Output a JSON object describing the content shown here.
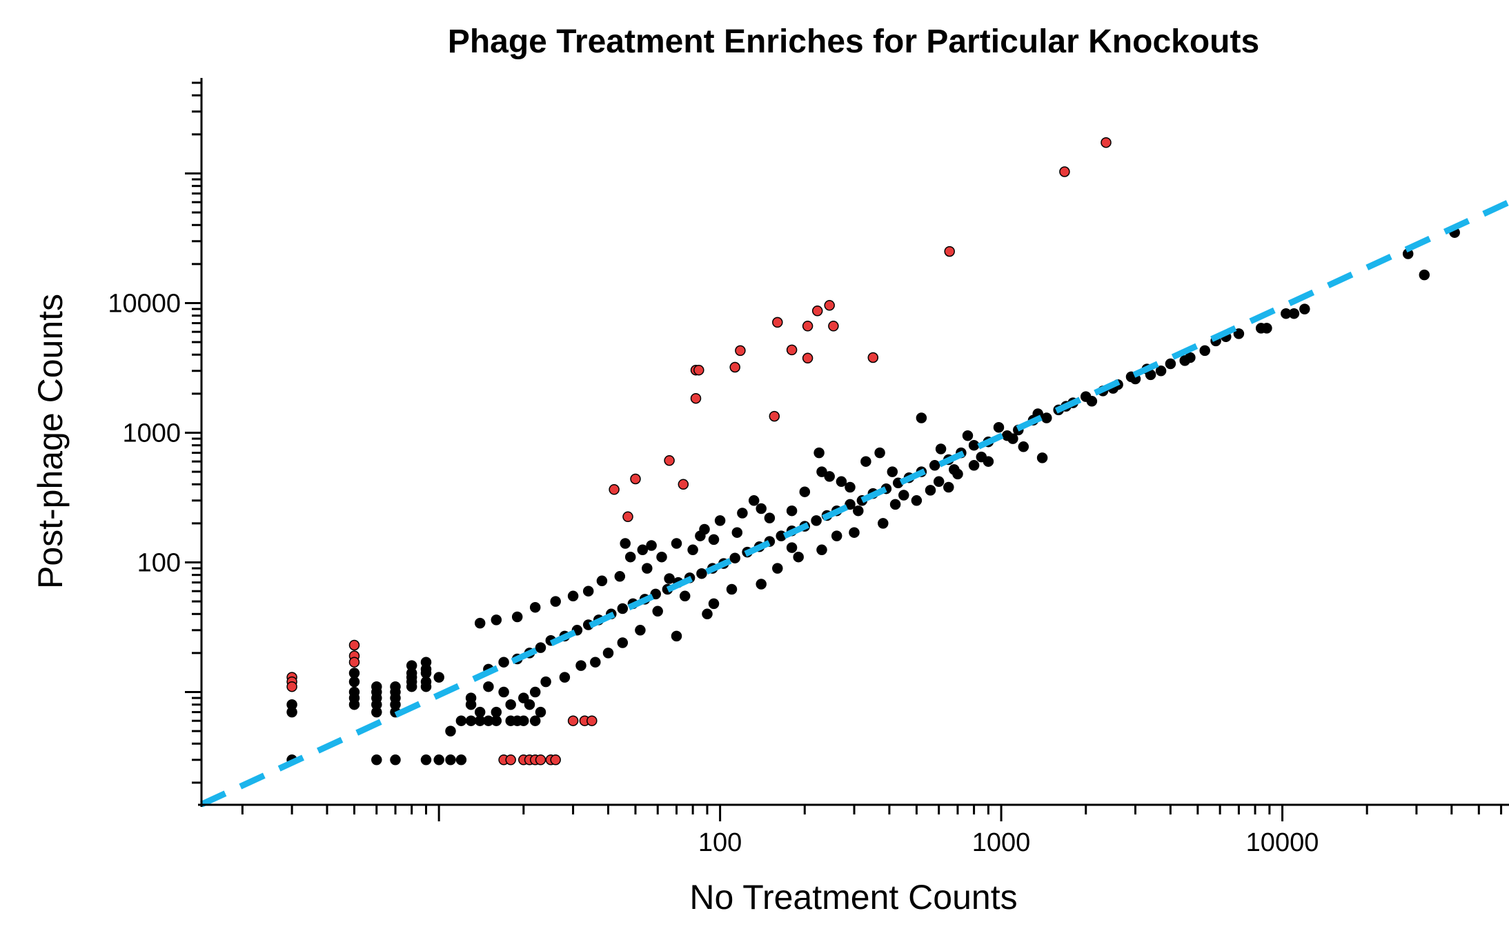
{
  "chart_data": {
    "type": "scatter",
    "title": "Phage Treatment Enriches for Particular Knockouts",
    "xlabel": "No Treatment Counts",
    "ylabel": "Post-phage Counts",
    "x_scale": "log",
    "y_scale": "log",
    "xlim": [
      1.43,
      64000
    ],
    "ylim": [
      1.35,
      545000
    ],
    "x_ticks": [
      {
        "value": 100,
        "label": "100"
      },
      {
        "value": 1000,
        "label": "1000"
      },
      {
        "value": 10000,
        "label": "10000"
      }
    ],
    "y_ticks": [
      {
        "value": 100,
        "label": "100"
      },
      {
        "value": 1000,
        "label": "1000"
      },
      {
        "value": 10000,
        "label": "10000"
      }
    ],
    "grid": false,
    "legend": "none",
    "colors": {
      "background": "#ffffff",
      "axis": "#000000",
      "unaffected_points": "#000000",
      "enriched_points": "#e83a3a",
      "reference_line": "#1bb4ec"
    },
    "reference_line": {
      "style": "dashed",
      "points": [
        [
          1.43,
          1.36
        ],
        [
          64000,
          60000
        ]
      ]
    },
    "series": [
      {
        "role": "enriched",
        "points": [
          [
            2360,
            173000
          ],
          [
            1680,
            103000
          ],
          [
            655,
            25000
          ],
          [
            245,
            9600
          ],
          [
            222,
            8700
          ],
          [
            160,
            7100
          ],
          [
            205,
            6650
          ],
          [
            253,
            6650
          ],
          [
            118,
            4300
          ],
          [
            180,
            4350
          ],
          [
            205,
            3760
          ],
          [
            350,
            3800
          ],
          [
            82,
            3040
          ],
          [
            84,
            3040
          ],
          [
            113,
            3200
          ],
          [
            82,
            1840
          ],
          [
            156,
            1340
          ],
          [
            66,
            610
          ],
          [
            74,
            400
          ],
          [
            50,
            440
          ],
          [
            42,
            365
          ],
          [
            47,
            225
          ],
          [
            3,
            13
          ],
          [
            3,
            12
          ],
          [
            3,
            11
          ],
          [
            5,
            23
          ],
          [
            5,
            19
          ],
          [
            5,
            17
          ],
          [
            30,
            6
          ],
          [
            33,
            6
          ],
          [
            35,
            6
          ],
          [
            17,
            3
          ],
          [
            18,
            3
          ],
          [
            20,
            3
          ],
          [
            21,
            3
          ],
          [
            22,
            3
          ],
          [
            23,
            3
          ],
          [
            25,
            3
          ],
          [
            26,
            3
          ]
        ]
      },
      {
        "role": "unaffected",
        "points": [
          [
            41000,
            35000
          ],
          [
            28000,
            24000
          ],
          [
            32000,
            16500
          ],
          [
            12000,
            9000
          ],
          [
            11000,
            8300
          ],
          [
            10300,
            8300
          ],
          [
            8800,
            6400
          ],
          [
            8400,
            6400
          ],
          [
            7000,
            5800
          ],
          [
            6300,
            5500
          ],
          [
            5800,
            5100
          ],
          [
            5300,
            4300
          ],
          [
            4700,
            3800
          ],
          [
            4500,
            3600
          ],
          [
            4000,
            3400
          ],
          [
            3700,
            3000
          ],
          [
            3400,
            2800
          ],
          [
            3000,
            2600
          ],
          [
            2600,
            2350
          ],
          [
            2300,
            2100
          ],
          [
            2000,
            1900
          ],
          [
            1800,
            1700
          ],
          [
            1600,
            1500
          ],
          [
            1450,
            1300
          ],
          [
            1300,
            1250
          ],
          [
            1150,
            1050
          ],
          [
            1050,
            950
          ],
          [
            900,
            850
          ],
          [
            800,
            800
          ],
          [
            720,
            700
          ],
          [
            650,
            620
          ],
          [
            580,
            560
          ],
          [
            520,
            500
          ],
          [
            470,
            450
          ],
          [
            430,
            410
          ],
          [
            390,
            370
          ],
          [
            350,
            340
          ],
          [
            320,
            300
          ],
          [
            290,
            280
          ],
          [
            260,
            250
          ],
          [
            240,
            230
          ],
          [
            220,
            210
          ],
          [
            200,
            190
          ],
          [
            180,
            175
          ],
          [
            165,
            160
          ],
          [
            150,
            145
          ],
          [
            138,
            132
          ],
          [
            125,
            120
          ],
          [
            113,
            108
          ],
          [
            103,
            98
          ],
          [
            94,
            90
          ],
          [
            86,
            82
          ],
          [
            78,
            76
          ],
          [
            71,
            70
          ],
          [
            65,
            62
          ],
          [
            59,
            57
          ],
          [
            54,
            52
          ],
          [
            49,
            48
          ],
          [
            45,
            44
          ],
          [
            41,
            40
          ],
          [
            37,
            36
          ],
          [
            34,
            33
          ],
          [
            31,
            30
          ],
          [
            28,
            27
          ],
          [
            25,
            25
          ],
          [
            23,
            22
          ],
          [
            21,
            20
          ],
          [
            19,
            18
          ],
          [
            17,
            17
          ],
          [
            15,
            15
          ],
          [
            520,
            1300
          ],
          [
            370,
            700
          ],
          [
            225,
            700
          ],
          [
            230,
            500
          ],
          [
            330,
            600
          ],
          [
            290,
            380
          ],
          [
            245,
            460
          ],
          [
            150,
            220
          ],
          [
            140,
            260
          ],
          [
            180,
            250
          ],
          [
            120,
            240
          ],
          [
            115,
            170
          ],
          [
            100,
            210
          ],
          [
            95,
            150
          ],
          [
            85,
            160
          ],
          [
            80,
            125
          ],
          [
            70,
            140
          ],
          [
            62,
            110
          ],
          [
            57,
            135
          ],
          [
            53,
            125
          ],
          [
            48,
            110
          ],
          [
            44,
            78
          ],
          [
            38,
            72
          ],
          [
            34,
            60
          ],
          [
            30,
            55
          ],
          [
            26,
            50
          ],
          [
            22,
            45
          ],
          [
            19,
            38
          ],
          [
            16,
            36
          ],
          [
            14,
            34
          ],
          [
            1200,
            780
          ],
          [
            1400,
            640
          ],
          [
            900,
            600
          ],
          [
            800,
            560
          ],
          [
            600,
            420
          ],
          [
            560,
            360
          ],
          [
            500,
            300
          ],
          [
            420,
            280
          ],
          [
            380,
            200
          ],
          [
            300,
            170
          ],
          [
            260,
            160
          ],
          [
            230,
            125
          ],
          [
            190,
            110
          ],
          [
            160,
            90
          ],
          [
            140,
            68
          ],
          [
            110,
            62
          ],
          [
            95,
            48
          ],
          [
            90,
            40
          ],
          [
            75,
            55
          ],
          [
            70,
            27
          ],
          [
            60,
            42
          ],
          [
            52,
            30
          ],
          [
            45,
            24
          ],
          [
            40,
            20
          ],
          [
            36,
            17
          ],
          [
            32,
            16
          ],
          [
            28,
            13
          ],
          [
            24,
            12
          ],
          [
            22,
            10
          ],
          [
            20,
            9
          ],
          [
            18,
            8
          ],
          [
            16,
            7
          ],
          [
            14,
            6
          ],
          [
            12,
            6
          ],
          [
            11,
            5
          ],
          [
            3,
            8
          ],
          [
            3,
            7
          ],
          [
            3,
            3
          ],
          [
            5,
            14
          ],
          [
            5,
            12
          ],
          [
            5,
            10
          ],
          [
            5,
            9
          ],
          [
            5,
            8
          ],
          [
            6,
            11
          ],
          [
            6,
            10
          ],
          [
            6,
            9
          ],
          [
            6,
            8
          ],
          [
            6,
            7
          ],
          [
            6,
            3
          ],
          [
            7,
            11
          ],
          [
            7,
            10
          ],
          [
            7,
            9
          ],
          [
            7,
            8
          ],
          [
            7,
            7
          ],
          [
            7,
            3
          ],
          [
            8,
            16
          ],
          [
            8,
            14
          ],
          [
            8,
            13
          ],
          [
            8,
            12
          ],
          [
            8,
            11
          ],
          [
            9,
            17
          ],
          [
            9,
            15
          ],
          [
            9,
            14
          ],
          [
            9,
            12
          ],
          [
            9,
            11
          ],
          [
            9,
            3
          ],
          [
            10,
            13
          ],
          [
            10,
            3
          ],
          [
            11,
            3
          ],
          [
            12,
            3
          ],
          [
            13,
            9
          ],
          [
            13,
            8
          ],
          [
            13,
            6
          ],
          [
            14,
            7
          ],
          [
            15,
            11
          ],
          [
            15,
            6
          ],
          [
            16,
            6
          ],
          [
            17,
            10
          ],
          [
            18,
            6
          ],
          [
            19,
            6
          ],
          [
            20,
            6
          ],
          [
            21,
            8
          ],
          [
            22,
            6
          ],
          [
            23,
            7
          ],
          [
            46,
            140
          ],
          [
            55,
            90
          ],
          [
            66,
            75
          ],
          [
            88,
            180
          ],
          [
            132,
            300
          ],
          [
            180,
            130
          ],
          [
            200,
            350
          ],
          [
            270,
            420
          ],
          [
            310,
            250
          ],
          [
            410,
            500
          ],
          [
            450,
            330
          ],
          [
            610,
            750
          ],
          [
            680,
            520
          ],
          [
            760,
            950
          ],
          [
            850,
            650
          ],
          [
            980,
            1100
          ],
          [
            1100,
            900
          ],
          [
            1350,
            1400
          ],
          [
            1700,
            1600
          ],
          [
            2100,
            1750
          ],
          [
            2500,
            2200
          ],
          [
            2900,
            2700
          ],
          [
            3300,
            3100
          ],
          [
            650,
            380
          ],
          [
            700,
            480
          ]
        ]
      }
    ]
  }
}
